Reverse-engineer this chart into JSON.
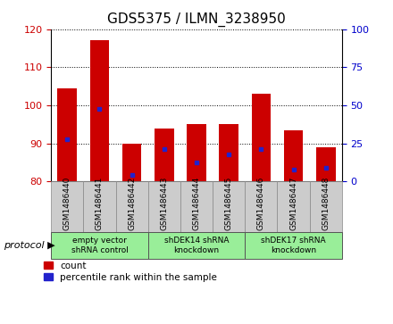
{
  "title": "GDS5375 / ILMN_3238950",
  "samples": [
    "GSM1486440",
    "GSM1486441",
    "GSM1486442",
    "GSM1486443",
    "GSM1486444",
    "GSM1486445",
    "GSM1486446",
    "GSM1486447",
    "GSM1486448"
  ],
  "count_values": [
    104.5,
    117.0,
    90.0,
    94.0,
    95.0,
    95.0,
    103.0,
    93.5,
    89.0
  ],
  "percentile_positions": [
    91.0,
    99.0,
    81.8,
    88.5,
    85.0,
    87.0,
    88.5,
    83.0,
    83.5
  ],
  "ylim_left": [
    80,
    120
  ],
  "ylim_right": [
    0,
    100
  ],
  "yticks_left": [
    80,
    90,
    100,
    110,
    120
  ],
  "yticks_right": [
    0,
    25,
    50,
    75,
    100
  ],
  "bar_color": "#cc0000",
  "percentile_color": "#2222cc",
  "protocol_groups": [
    {
      "label": "empty vector\nshRNA control",
      "start": 0,
      "end": 3,
      "color": "#99ee99"
    },
    {
      "label": "shDEK14 shRNA\nknockdown",
      "start": 3,
      "end": 6,
      "color": "#99ee99"
    },
    {
      "label": "shDEK17 shRNA\nknockdown",
      "start": 6,
      "end": 9,
      "color": "#99ee99"
    }
  ],
  "legend_count_label": "count",
  "legend_percentile_label": "percentile rank within the sample",
  "protocol_label": "protocol",
  "background_color": "#ffffff",
  "plot_bg_color": "#ffffff",
  "xtick_bg_color": "#cccccc",
  "bar_width": 0.6,
  "title_fontsize": 11,
  "axis_color_left": "#cc0000",
  "axis_color_right": "#0000cc"
}
